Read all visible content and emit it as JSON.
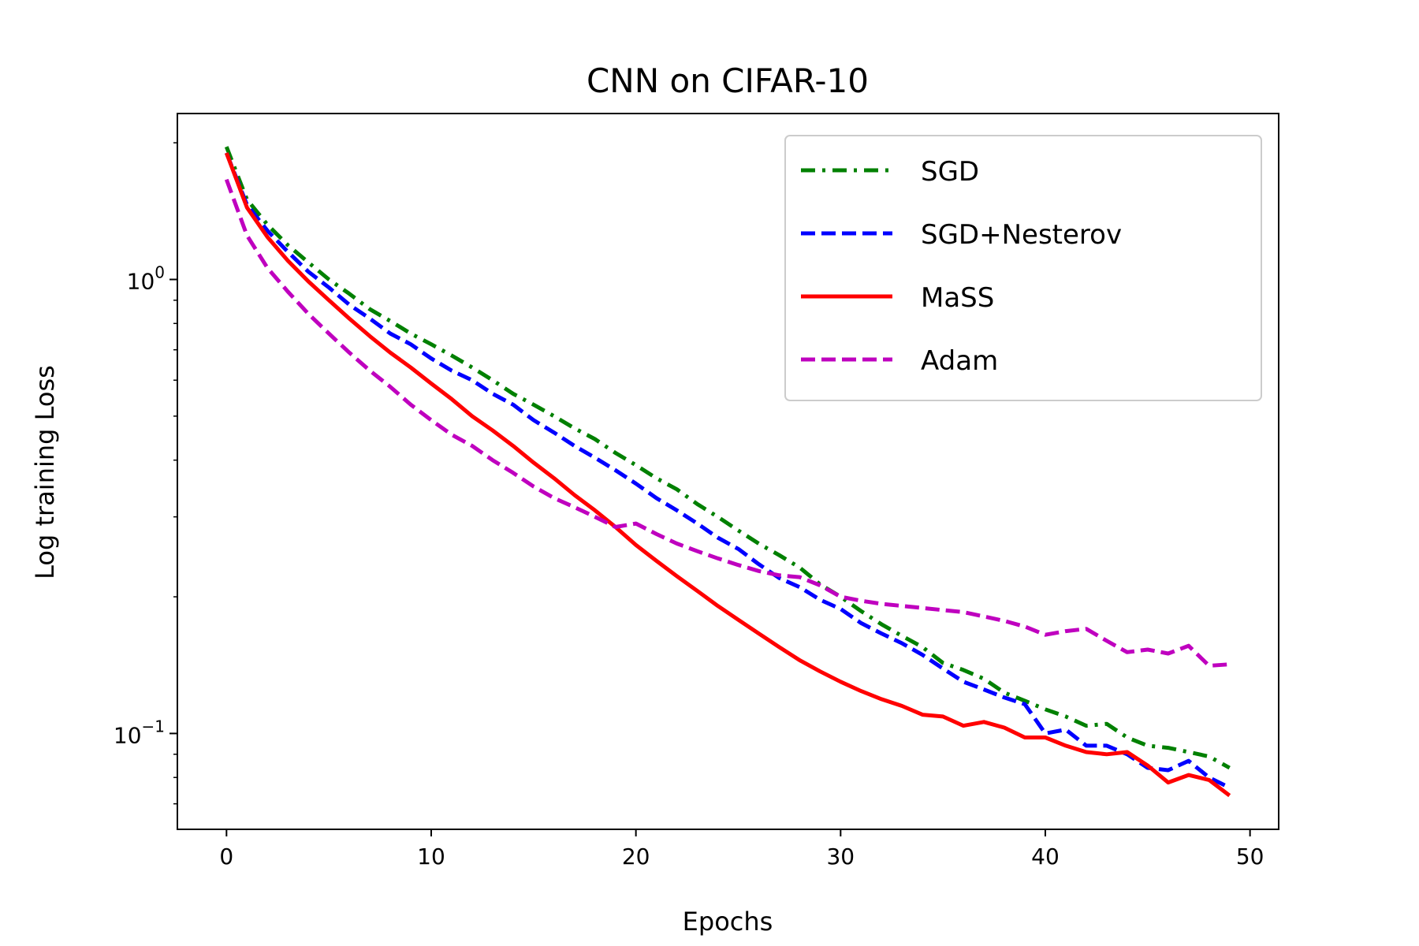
{
  "chart_data": {
    "type": "line",
    "title": "CNN on CIFAR-10",
    "xlabel": "Epochs",
    "ylabel": "Log training Loss",
    "yscale": "log",
    "xlim": [
      -2.4,
      51.4
    ],
    "ylim": [
      0.0615,
      2.32
    ],
    "xticks": [
      0,
      10,
      20,
      30,
      40,
      50
    ],
    "xtick_labels": [
      "0",
      "10",
      "20",
      "30",
      "40",
      "50"
    ],
    "yticks": [
      {
        "value": 1.0,
        "base": "10",
        "exp": "0"
      },
      {
        "value": 0.1,
        "base": "10",
        "exp": "−1"
      }
    ],
    "grid": false,
    "legend_position": "top-right",
    "x": [
      0,
      1,
      2,
      3,
      4,
      5,
      6,
      7,
      8,
      9,
      10,
      11,
      12,
      13,
      14,
      15,
      16,
      17,
      18,
      19,
      20,
      21,
      22,
      23,
      24,
      25,
      26,
      27,
      28,
      29,
      30,
      31,
      32,
      33,
      34,
      35,
      36,
      37,
      38,
      39,
      40,
      41,
      42,
      43,
      44,
      45,
      46,
      47,
      48,
      49
    ],
    "series": [
      {
        "name": "SGD",
        "color": "#008000",
        "dash": "dashdot",
        "values": [
          1.96,
          1.5,
          1.32,
          1.19,
          1.09,
          1.0,
          0.93,
          0.86,
          0.81,
          0.76,
          0.72,
          0.68,
          0.64,
          0.6,
          0.56,
          0.53,
          0.5,
          0.47,
          0.445,
          0.415,
          0.39,
          0.365,
          0.345,
          0.32,
          0.3,
          0.28,
          0.262,
          0.247,
          0.232,
          0.213,
          0.2,
          0.186,
          0.174,
          0.164,
          0.155,
          0.143,
          0.138,
          0.132,
          0.123,
          0.118,
          0.113,
          0.109,
          0.104,
          0.105,
          0.098,
          0.094,
          0.093,
          0.091,
          0.089,
          0.084
        ]
      },
      {
        "name": "SGD+Nesterov",
        "color": "#0000ff",
        "dash": "dashed",
        "values": [
          1.9,
          1.46,
          1.28,
          1.15,
          1.04,
          0.96,
          0.88,
          0.82,
          0.76,
          0.72,
          0.67,
          0.63,
          0.6,
          0.56,
          0.53,
          0.49,
          0.46,
          0.43,
          0.405,
          0.38,
          0.355,
          0.33,
          0.31,
          0.29,
          0.27,
          0.255,
          0.236,
          0.22,
          0.21,
          0.197,
          0.188,
          0.175,
          0.166,
          0.158,
          0.149,
          0.139,
          0.13,
          0.125,
          0.12,
          0.116,
          0.1,
          0.102,
          0.094,
          0.094,
          0.09,
          0.084,
          0.083,
          0.087,
          0.08,
          0.076
        ]
      },
      {
        "name": "MaSS",
        "color": "#ff0000",
        "dash": "solid",
        "values": [
          1.9,
          1.44,
          1.24,
          1.1,
          0.99,
          0.9,
          0.82,
          0.75,
          0.69,
          0.64,
          0.59,
          0.545,
          0.5,
          0.465,
          0.43,
          0.395,
          0.365,
          0.335,
          0.31,
          0.285,
          0.26,
          0.24,
          0.222,
          0.206,
          0.191,
          0.178,
          0.166,
          0.155,
          0.145,
          0.137,
          0.13,
          0.124,
          0.119,
          0.115,
          0.11,
          0.109,
          0.104,
          0.106,
          0.103,
          0.098,
          0.098,
          0.094,
          0.091,
          0.09,
          0.091,
          0.085,
          0.078,
          0.081,
          0.079,
          0.073
        ]
      },
      {
        "name": "Adam",
        "color": "#bf00bf",
        "dash": "dashed",
        "values": [
          1.66,
          1.25,
          1.06,
          0.94,
          0.84,
          0.76,
          0.69,
          0.63,
          0.58,
          0.53,
          0.49,
          0.455,
          0.43,
          0.4,
          0.375,
          0.35,
          0.33,
          0.315,
          0.3,
          0.285,
          0.29,
          0.275,
          0.262,
          0.252,
          0.243,
          0.235,
          0.228,
          0.223,
          0.221,
          0.212,
          0.2,
          0.196,
          0.193,
          0.191,
          0.189,
          0.187,
          0.185,
          0.181,
          0.177,
          0.172,
          0.165,
          0.168,
          0.17,
          0.16,
          0.151,
          0.153,
          0.15,
          0.156,
          0.141,
          0.142
        ]
      }
    ]
  }
}
